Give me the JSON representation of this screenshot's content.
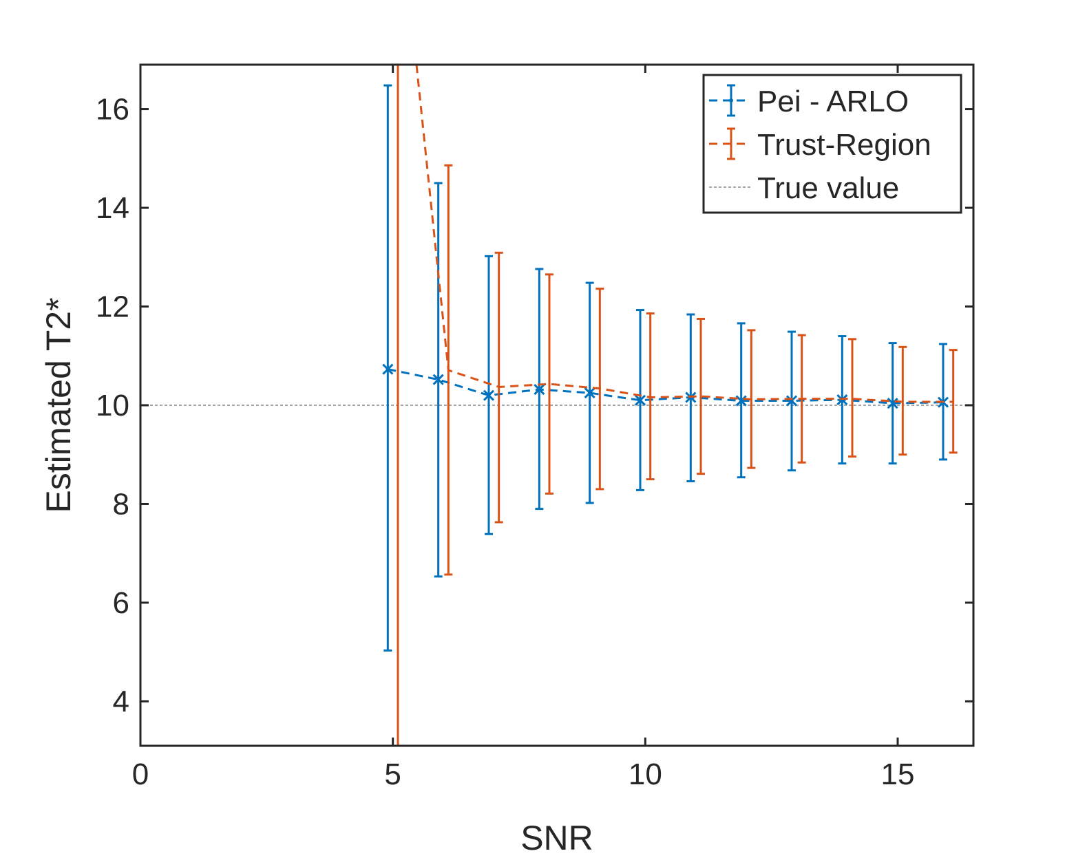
{
  "chart_data": {
    "type": "line",
    "xlabel": "SNR",
    "ylabel": "Estimated T2*",
    "xlim": [
      0,
      16.5
    ],
    "ylim": [
      3.1,
      16.9
    ],
    "xticks": [
      0,
      5,
      10,
      15
    ],
    "yticks": [
      4,
      6,
      8,
      10,
      12,
      14,
      16
    ],
    "xtick_labels": [
      "0",
      "5",
      "10",
      "15"
    ],
    "ytick_labels": [
      "4",
      "6",
      "8",
      "10",
      "12",
      "14",
      "16"
    ],
    "grid": false,
    "legend_position": "top-right",
    "series": [
      {
        "name": "Pei - ARLO",
        "color": "#0072BD",
        "style": "dashed-errorbar-x",
        "x": [
          4.9,
          5.9,
          6.9,
          7.9,
          8.9,
          9.9,
          10.9,
          11.9,
          12.9,
          13.9,
          14.9,
          15.9
        ],
        "y": [
          10.73,
          10.52,
          10.2,
          10.32,
          10.25,
          10.1,
          10.16,
          10.09,
          10.09,
          10.11,
          10.04,
          10.06
        ],
        "lower": [
          5.03,
          6.53,
          7.39,
          7.9,
          8.02,
          8.28,
          8.46,
          8.54,
          8.68,
          8.82,
          8.82,
          8.9
        ],
        "upper": [
          16.48,
          14.5,
          13.02,
          12.76,
          12.48,
          11.93,
          11.84,
          11.66,
          11.49,
          11.4,
          11.26,
          11.24
        ]
      },
      {
        "name": "Trust-Region",
        "color": "#D95319",
        "style": "dashed-errorbar",
        "x": [
          5.1,
          6.1,
          7.1,
          8.1,
          9.1,
          10.1,
          11.1,
          12.1,
          13.1,
          14.1,
          15.1,
          16.1
        ],
        "y": [
          20.5,
          10.71,
          10.37,
          10.43,
          10.34,
          10.16,
          10.18,
          10.12,
          10.13,
          10.13,
          10.07,
          10.07
        ],
        "lower": [
          3.1,
          6.57,
          7.63,
          8.21,
          8.3,
          8.5,
          8.61,
          8.73,
          8.84,
          8.96,
          9.0,
          9.04
        ],
        "upper": [
          16.9,
          14.86,
          13.09,
          12.65,
          12.36,
          11.86,
          11.75,
          11.52,
          11.42,
          11.34,
          11.18,
          11.12
        ]
      }
    ],
    "reference_lines": [
      {
        "name": "True value",
        "y": 10,
        "color": "#A6A6A6",
        "style": "dashed"
      }
    ]
  }
}
